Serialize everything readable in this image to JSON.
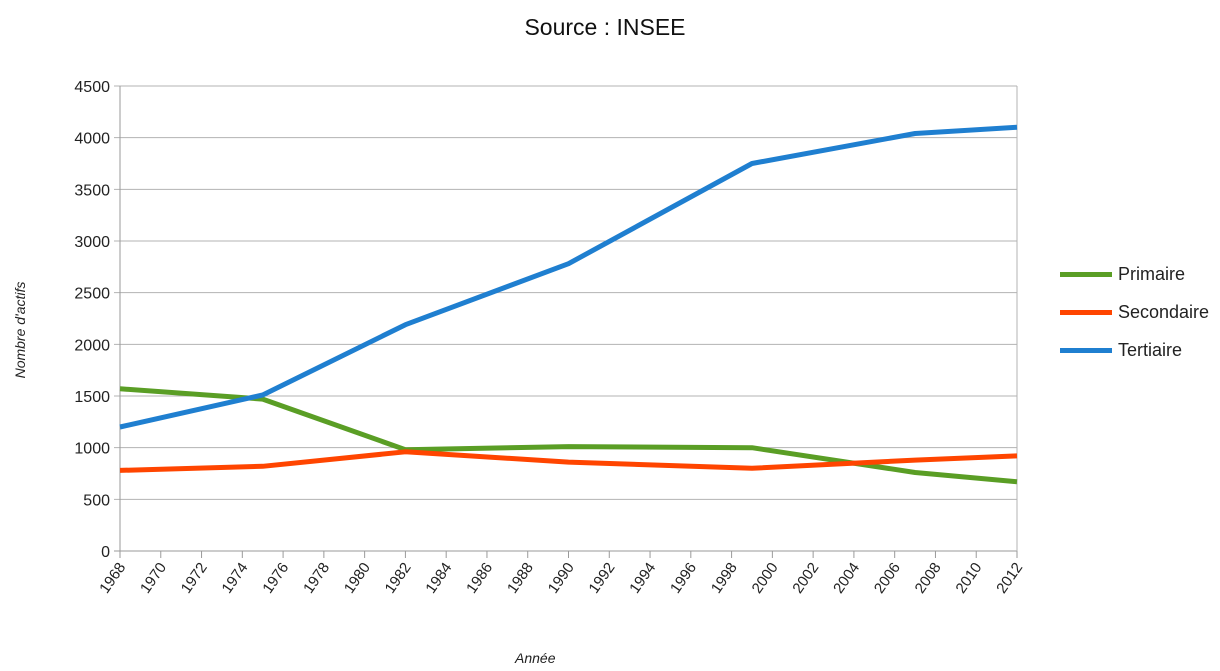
{
  "chart_data": {
    "type": "line",
    "title": "Source : INSEE",
    "xlabel": "Année",
    "ylabel": "Nombre d'actifs",
    "x_ticks": [
      "1968",
      "1970",
      "1972",
      "1974",
      "1976",
      "1978",
      "1980",
      "1982",
      "1984",
      "1986",
      "1988",
      "1990",
      "1992",
      "1994",
      "1996",
      "1998",
      "2000",
      "2002",
      "2004",
      "2006",
      "2008",
      "2010",
      "2012"
    ],
    "y_ticks": [
      0,
      500,
      1000,
      1500,
      2000,
      2500,
      3000,
      3500,
      4000,
      4500
    ],
    "xlim": [
      1968,
      2012
    ],
    "ylim": [
      0,
      4500
    ],
    "grid": "horizontal",
    "legend": "right",
    "series": [
      {
        "name": "Primaire",
        "color": "#5a9e25",
        "x": [
          1968,
          1975,
          1982,
          1990,
          1999,
          2007,
          2012
        ],
        "y": [
          1570,
          1470,
          980,
          1010,
          1000,
          760,
          670
        ]
      },
      {
        "name": "Secondaire",
        "color": "#ff4500",
        "x": [
          1968,
          1975,
          1982,
          1990,
          1999,
          2007,
          2012
        ],
        "y": [
          780,
          820,
          960,
          860,
          800,
          880,
          920
        ]
      },
      {
        "name": "Tertiaire",
        "color": "#1f7fd0",
        "x": [
          1968,
          1975,
          1982,
          1990,
          1999,
          2007,
          2012
        ],
        "y": [
          1200,
          1510,
          2190,
          2780,
          3750,
          4040,
          4100
        ]
      }
    ]
  }
}
